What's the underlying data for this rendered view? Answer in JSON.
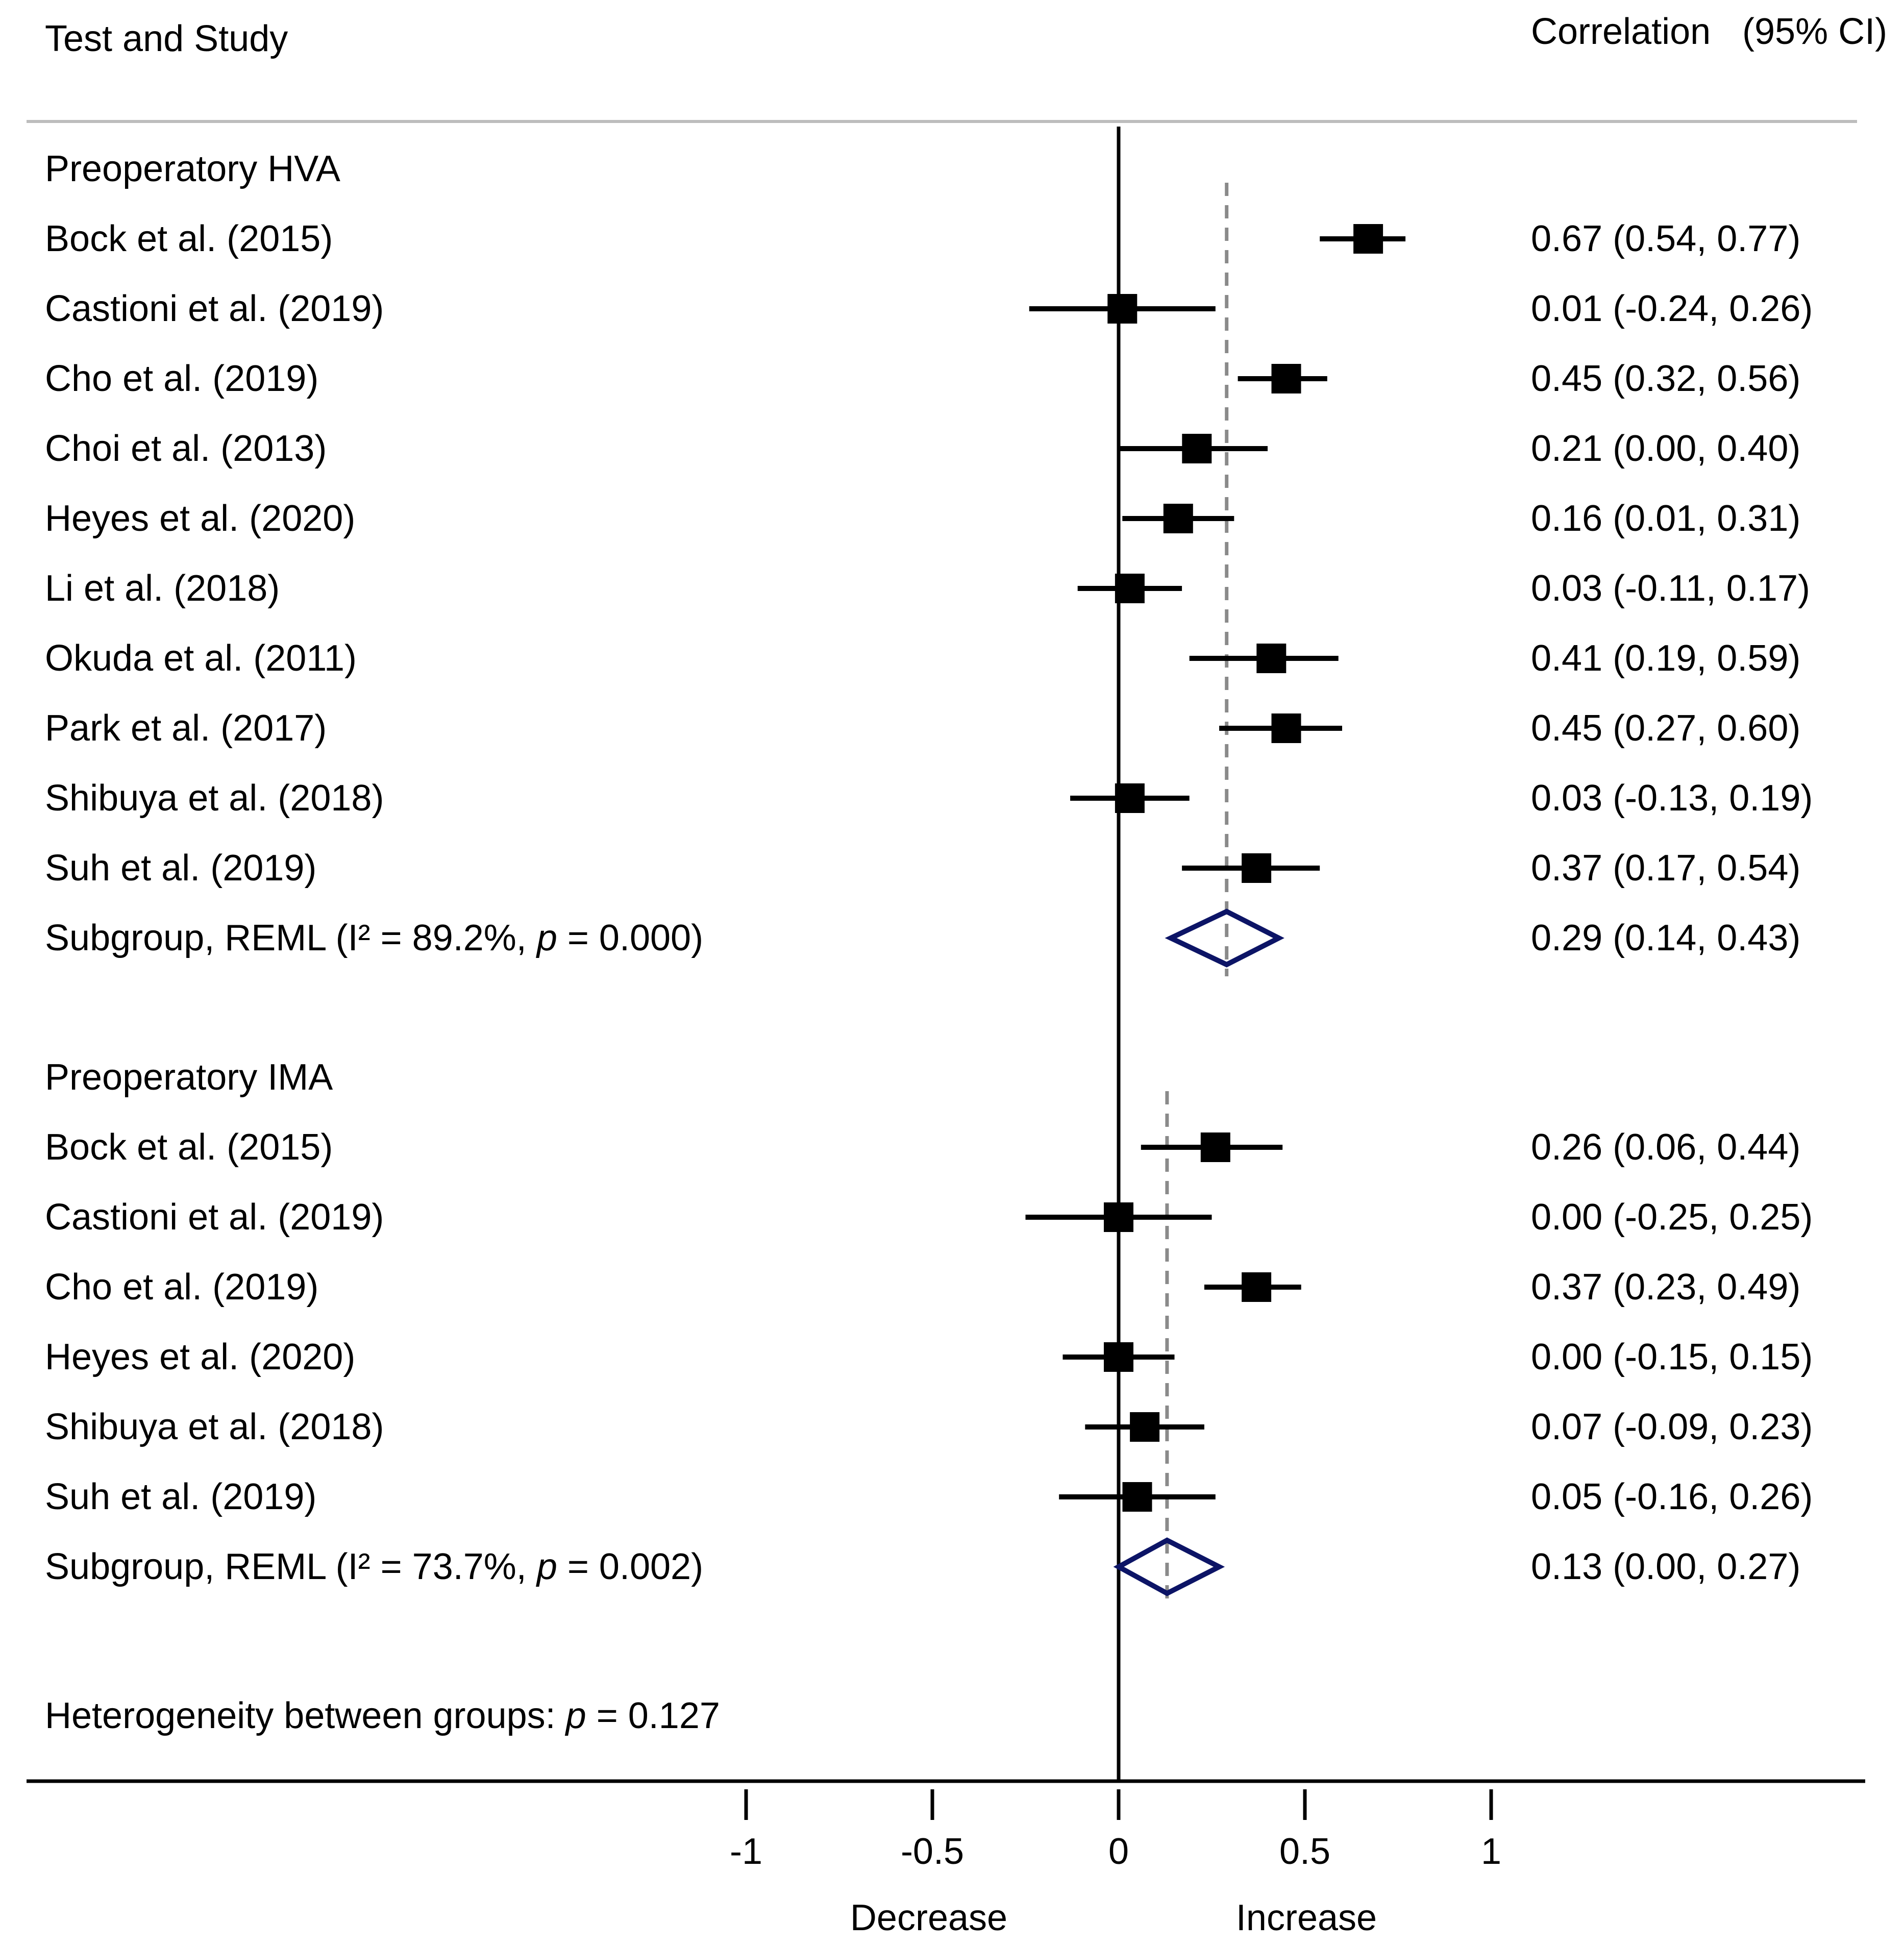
{
  "chart_data": {
    "type": "forest",
    "header": {
      "left": "Test and Study",
      "right_label": "Correlation",
      "right_ci": "(95% CI)"
    },
    "xlim": [
      -1,
      1
    ],
    "x_ticks": [
      "-1",
      "-0.5",
      "0",
      "0.5",
      "1"
    ],
    "x_tick_values": [
      -1,
      -0.5,
      0,
      0.5,
      1
    ],
    "direction_labels": {
      "left": "Decrease",
      "right": "Increase"
    },
    "groups": [
      {
        "title": "Preoperatory HVA",
        "studies": [
          {
            "label": "Bock et al. (2015)",
            "estimate": 0.67,
            "lower": 0.54,
            "upper": 0.77,
            "text": "0.67 (0.54, 0.77)"
          },
          {
            "label": "Castioni et al. (2019)",
            "estimate": 0.01,
            "lower": -0.24,
            "upper": 0.26,
            "text": "0.01 (-0.24, 0.26)"
          },
          {
            "label": "Cho et al. (2019)",
            "estimate": 0.45,
            "lower": 0.32,
            "upper": 0.56,
            "text": "0.45 (0.32, 0.56)"
          },
          {
            "label": "Choi et al. (2013)",
            "estimate": 0.21,
            "lower": 0.0,
            "upper": 0.4,
            "text": "0.21 (0.00, 0.40)"
          },
          {
            "label": "Heyes et al. (2020)",
            "estimate": 0.16,
            "lower": 0.01,
            "upper": 0.31,
            "text": "0.16 (0.01, 0.31)"
          },
          {
            "label": "Li et al. (2018)",
            "estimate": 0.03,
            "lower": -0.11,
            "upper": 0.17,
            "text": "0.03 (-0.11, 0.17)"
          },
          {
            "label": "Okuda et al. (2011)",
            "estimate": 0.41,
            "lower": 0.19,
            "upper": 0.59,
            "text": "0.41 (0.19, 0.59)"
          },
          {
            "label": "Park et al. (2017)",
            "estimate": 0.45,
            "lower": 0.27,
            "upper": 0.6,
            "text": "0.45 (0.27, 0.60)"
          },
          {
            "label": "Shibuya et al. (2018)",
            "estimate": 0.03,
            "lower": -0.13,
            "upper": 0.19,
            "text": "0.03 (-0.13, 0.19)"
          },
          {
            "label": "Suh et al. (2019)",
            "estimate": 0.37,
            "lower": 0.17,
            "upper": 0.54,
            "text": "0.37 (0.17, 0.54)"
          }
        ],
        "subgroup": {
          "label_prefix": "Subgroup, REML (I² = 89.2%, ",
          "p_symbol": "p",
          "label_suffix": " = 0.000)",
          "estimate": 0.29,
          "lower": 0.14,
          "upper": 0.43,
          "text": "0.29 (0.14, 0.43)"
        }
      },
      {
        "title": "Preoperatory IMA",
        "studies": [
          {
            "label": "Bock et al. (2015)",
            "estimate": 0.26,
            "lower": 0.06,
            "upper": 0.44,
            "text": "0.26 (0.06, 0.44)"
          },
          {
            "label": "Castioni et al. (2019)",
            "estimate": 0.0,
            "lower": -0.25,
            "upper": 0.25,
            "text": "0.00 (-0.25, 0.25)"
          },
          {
            "label": "Cho et al. (2019)",
            "estimate": 0.37,
            "lower": 0.23,
            "upper": 0.49,
            "text": "0.37 (0.23, 0.49)"
          },
          {
            "label": "Heyes et al. (2020)",
            "estimate": 0.0,
            "lower": -0.15,
            "upper": 0.15,
            "text": "0.00 (-0.15, 0.15)"
          },
          {
            "label": "Shibuya et al. (2018)",
            "estimate": 0.07,
            "lower": -0.09,
            "upper": 0.23,
            "text": "0.07 (-0.09, 0.23)"
          },
          {
            "label": "Suh et al. (2019)",
            "estimate": 0.05,
            "lower": -0.16,
            "upper": 0.26,
            "text": "0.05 (-0.16, 0.26)"
          }
        ],
        "subgroup": {
          "label_prefix": "Subgroup, REML (I² = 73.7%, ",
          "p_symbol": "p",
          "label_suffix": " = 0.002)",
          "estimate": 0.13,
          "lower": 0.0,
          "upper": 0.27,
          "text": "0.13 (0.00, 0.27)"
        }
      }
    ],
    "heterogeneity": {
      "prefix": "Heterogeneity between groups: ",
      "p_symbol": "p",
      "suffix": " = 0.127"
    },
    "colors": {
      "marker": "#000000",
      "diamond": "#0c1466",
      "reference_dashed": "#8a8a8a",
      "separator": "#bdbdbd"
    }
  }
}
